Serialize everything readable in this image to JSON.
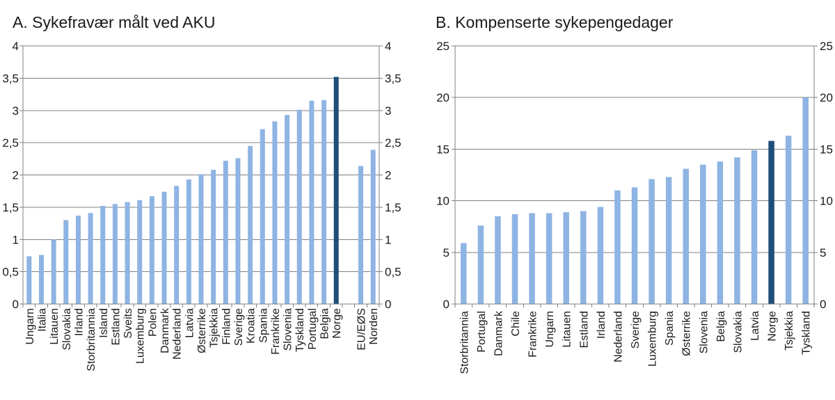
{
  "chart_data": [
    {
      "type": "bar",
      "title": "A. Sykefravær målt ved AKU",
      "xlabel": "",
      "ylabel": "",
      "ylim": [
        0,
        4
      ],
      "yticks": [
        "0",
        "0,5",
        "1",
        "1,5",
        "2",
        "2,5",
        "3",
        "3,5",
        "4"
      ],
      "ytick_values": [
        0,
        0.5,
        1,
        1.5,
        2,
        2.5,
        3,
        3.5,
        4
      ],
      "grid": true,
      "categories": [
        "Ungarn",
        "Italia",
        "Litauen",
        "Slovakia",
        "Irland",
        "Storbritannia",
        "Island",
        "Estland",
        "Sveits",
        "Luxemburg",
        "Polen",
        "Danmark",
        "Nederland",
        "Latvia",
        "Østerrike",
        "Tsjekkia",
        "Finland",
        "Sverige",
        "Kroatia",
        "Spania",
        "Frankrike",
        "Slovenia",
        "Tyskland",
        "Portugal",
        "Belgia",
        "Norge",
        "",
        "EU/EØS",
        "Norden"
      ],
      "values": [
        0.74,
        0.76,
        1.0,
        1.3,
        1.37,
        1.41,
        1.52,
        1.55,
        1.58,
        1.61,
        1.67,
        1.74,
        1.83,
        1.93,
        2.01,
        2.08,
        2.22,
        2.26,
        2.45,
        2.71,
        2.83,
        2.93,
        3.01,
        3.15,
        3.16,
        3.52,
        null,
        2.14,
        2.39
      ],
      "highlight": "Norge",
      "colors": {
        "bar": "#8eb4e3",
        "highlight": "#1f4e79"
      }
    },
    {
      "type": "bar",
      "title": "B. Kompenserte sykepengedager",
      "xlabel": "",
      "ylabel": "",
      "ylim": [
        0,
        25
      ],
      "yticks": [
        "0",
        "5",
        "10",
        "15",
        "20",
        "25"
      ],
      "ytick_values": [
        0,
        5,
        10,
        15,
        20,
        25
      ],
      "grid": true,
      "categories": [
        "Storbritannia",
        "Portugal",
        "Danmark",
        "Chile",
        "Frankrike",
        "Ungarn",
        "Litauen",
        "Estland",
        "Irland",
        "Nederland",
        "Sverige",
        "Luxemburg",
        "Spania",
        "Østerrike",
        "Slovenia",
        "Belgia",
        "Slovakia",
        "Latvia",
        "Norge",
        "Tsjekkia",
        "Tyskland"
      ],
      "values": [
        5.9,
        7.6,
        8.5,
        8.7,
        8.8,
        8.8,
        8.9,
        9.0,
        9.4,
        11.0,
        11.3,
        12.1,
        12.3,
        13.1,
        13.5,
        13.8,
        14.2,
        14.9,
        15.8,
        16.3,
        20.0
      ],
      "highlight": "Norge",
      "colors": {
        "bar": "#8eb4e3",
        "highlight": "#1f4e79"
      }
    }
  ]
}
